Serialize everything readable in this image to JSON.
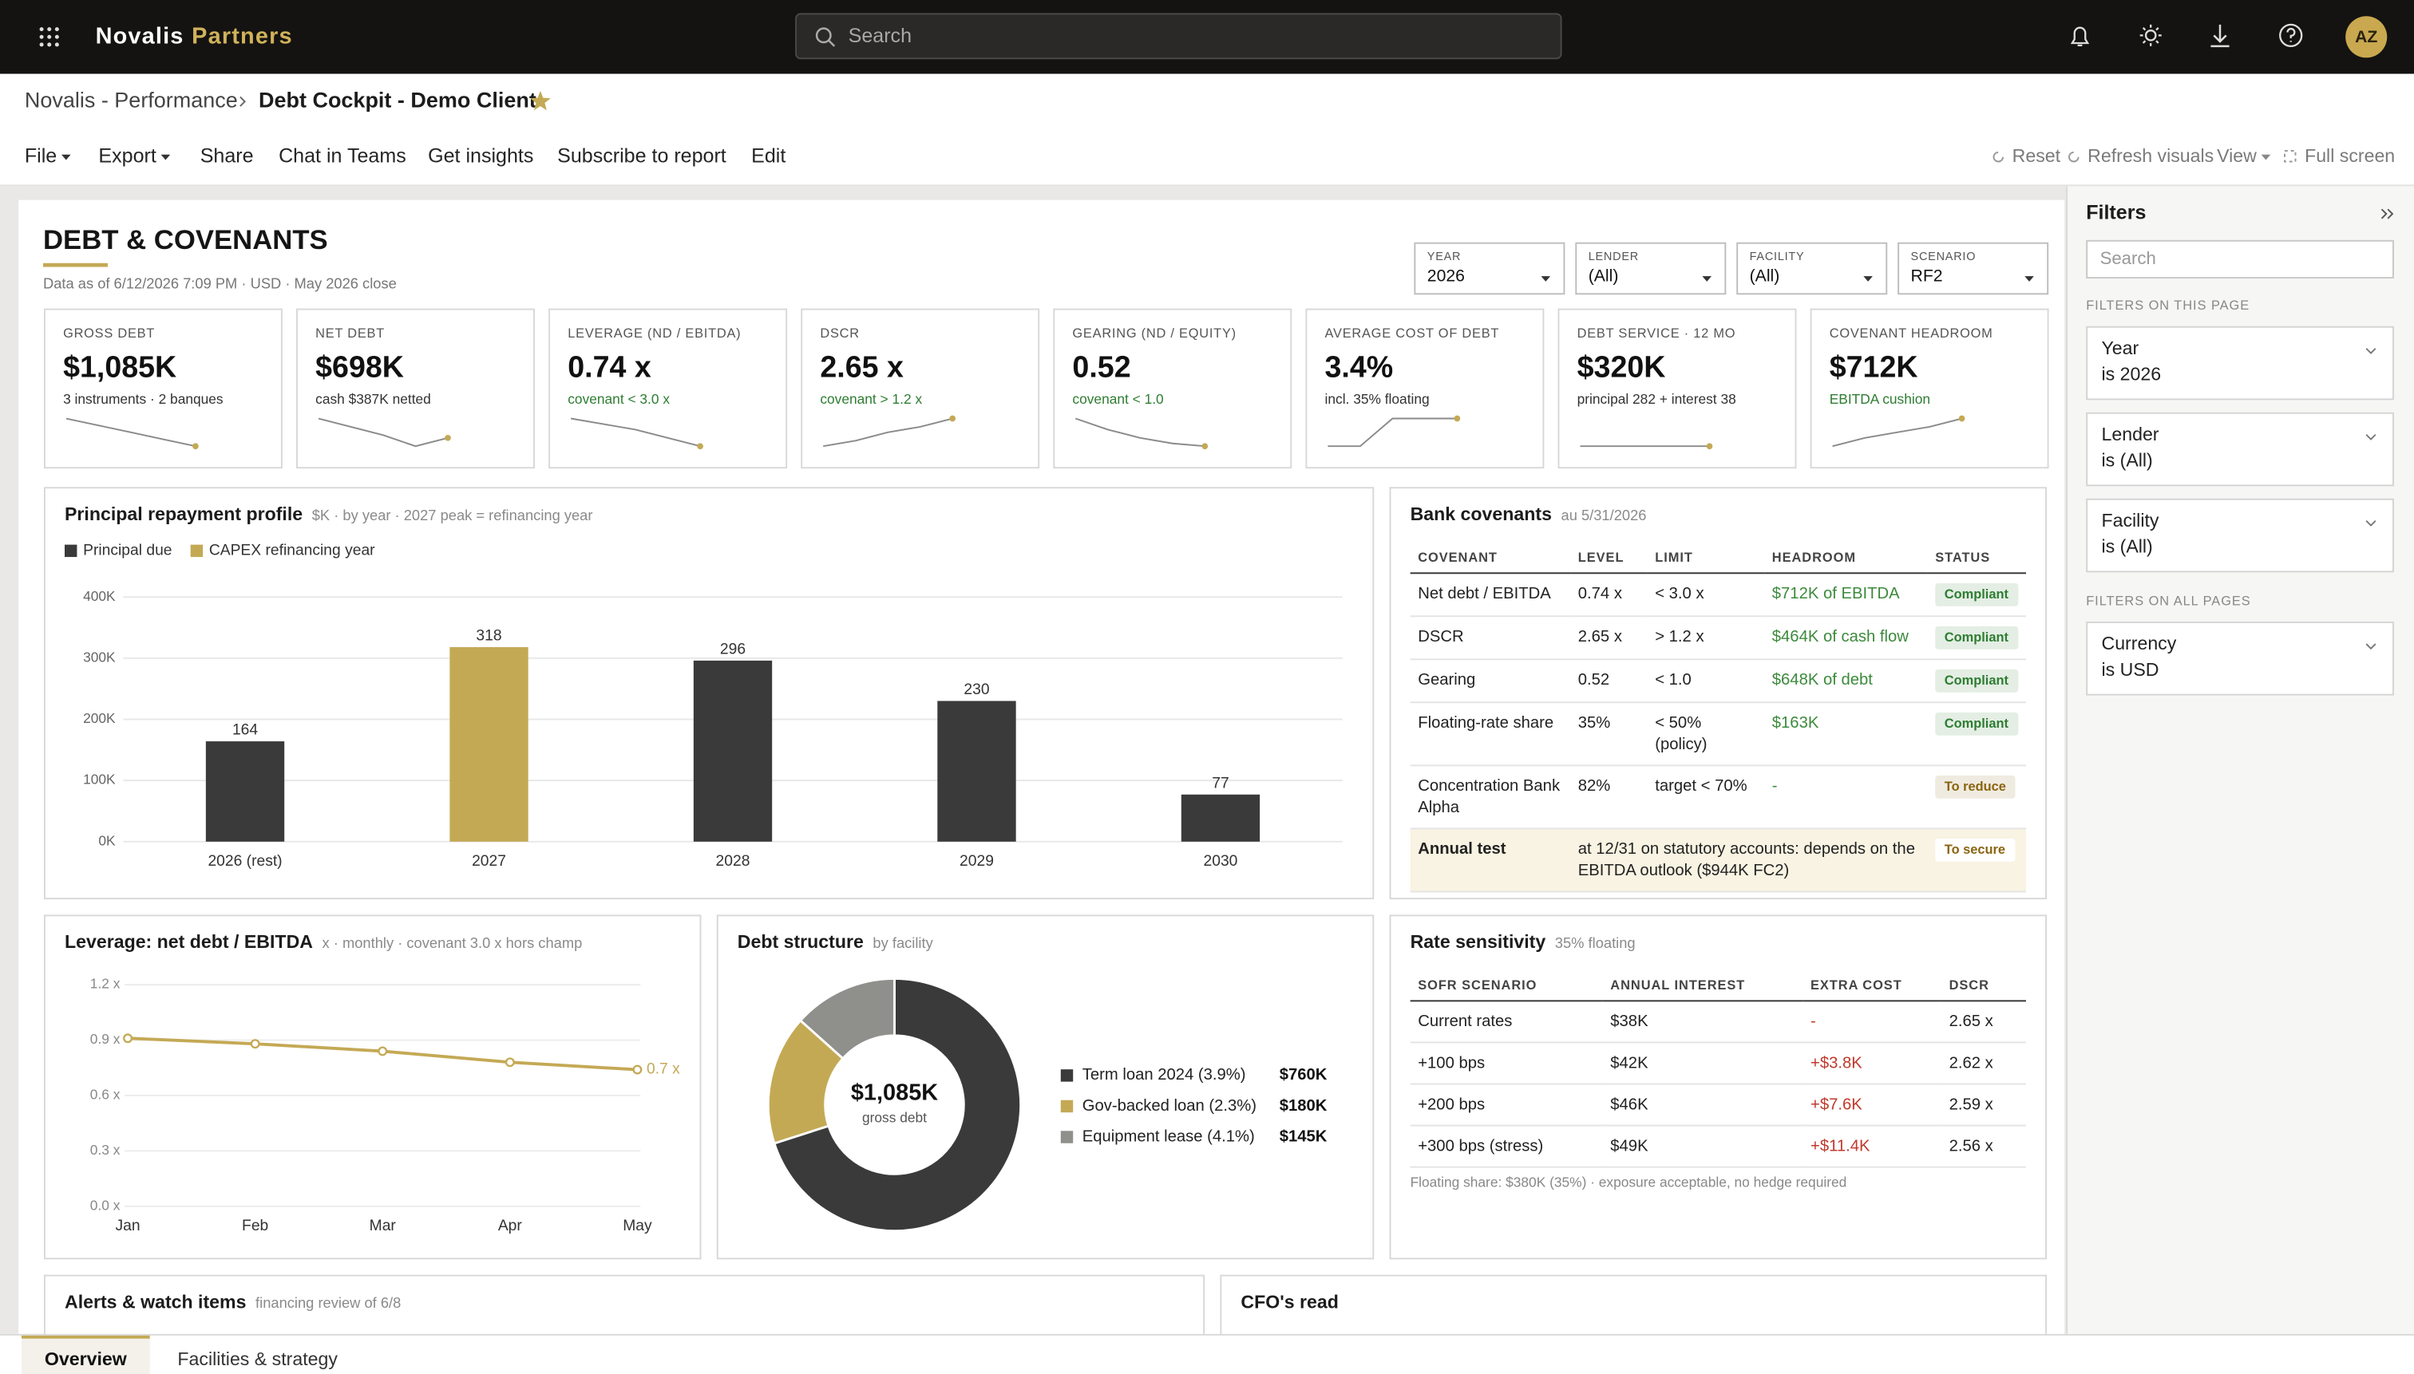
{
  "top_bar": {
    "brand": "Novalis",
    "brand_accent": "Partners",
    "search": "Search",
    "avatar": "AZ"
  },
  "breadcrumb": {
    "parent": "Novalis - Performance",
    "current": "Debt Cockpit - Demo Client"
  },
  "menu": {
    "left": [
      "File",
      "Export",
      "Share",
      "Chat in Teams",
      "Get insights",
      "Subscribe to report",
      "Edit"
    ],
    "right": [
      "Reset",
      "Refresh visuals",
      "View",
      "Full screen"
    ]
  },
  "report": {
    "title": "DEBT & COVENANTS",
    "subtitle": "Data as of 6/12/2026 7:09 PM · USD · May 2026 close",
    "slicers": [
      {
        "label": "YEAR",
        "value": "2026"
      },
      {
        "label": "LENDER",
        "value": "(All)"
      },
      {
        "label": "FACILITY",
        "value": "(All)"
      },
      {
        "label": "SCENARIO",
        "value": "RF2"
      }
    ],
    "kpis": [
      {
        "label": "GROSS DEBT",
        "value": "$1,085K",
        "note": "3 instruments · 2 banques",
        "note_color": "#333333",
        "trend": [
          10,
          7.5,
          5,
          2.5,
          0
        ]
      },
      {
        "label": "NET DEBT",
        "value": "$698K",
        "note": "cash $387K netted",
        "note_color": "#333333",
        "trend": [
          10,
          7,
          4,
          0,
          3
        ]
      },
      {
        "label": "LEVERAGE (ND / EBITDA)",
        "value": "0.74 x",
        "note": "covenant < 3.0 x",
        "note_color": "#2e7d32",
        "trend": [
          10,
          8,
          6,
          3,
          0
        ]
      },
      {
        "label": "DSCR",
        "value": "2.65 x",
        "note": "covenant > 1.2 x",
        "note_color": "#2e7d32",
        "trend": [
          0,
          2,
          5,
          7,
          10
        ]
      },
      {
        "label": "GEARING (ND / EQUITY)",
        "value": "0.52",
        "note": "covenant < 1.0",
        "note_color": "#2e7d32",
        "trend": [
          10,
          6,
          3,
          1,
          0
        ]
      },
      {
        "label": "AVERAGE COST OF DEBT",
        "value": "3.4%",
        "note": "incl. 35% floating",
        "note_color": "#333333",
        "trend": [
          0,
          0,
          10,
          10,
          10
        ]
      },
      {
        "label": "DEBT SERVICE · 12 MO",
        "value": "$320K",
        "note": "principal 282 + interest 38",
        "note_color": "#333333",
        "trend": [
          5,
          5,
          5,
          5,
          5
        ]
      },
      {
        "label": "COVENANT HEADROOM",
        "value": "$712K",
        "note": "EBITDA cushion",
        "note_color": "#2e7d32",
        "trend": [
          0,
          3,
          5,
          7,
          10
        ]
      }
    ],
    "covenants": {
      "title": "Bank covenants",
      "subtitle": "au 5/31/2026",
      "columns": [
        "COVENANT",
        "LEVEL",
        "LIMIT",
        "HEADROOM",
        "STATUS"
      ],
      "headroom_color": "#3c8a3c",
      "rows": [
        {
          "cells": [
            "Net debt / EBITDA",
            "0.74 x",
            "< 3.0 x",
            "$712K of EBITDA",
            "Compliant"
          ],
          "status_color": "#2e7d32"
        },
        {
          "cells": [
            "DSCR",
            "2.65 x",
            "> 1.2 x",
            "$464K of cash flow",
            "Compliant"
          ],
          "status_color": "#2e7d32"
        },
        {
          "cells": [
            "Gearing",
            "0.52",
            "< 1.0",
            "$648K of debt",
            "Compliant"
          ],
          "status_color": "#2e7d32"
        },
        {
          "cells": [
            "Floating-rate share",
            "35%",
            "< 50% (policy)",
            "$163K",
            "Compliant"
          ],
          "status_color": "#2e7d32"
        },
        {
          "cells": [
            "Concentration Bank Alpha",
            "82%",
            "target < 70%",
            "-",
            "To reduce"
          ],
          "status_color": "#8a6410"
        },
        {
          "cells": [
            "Annual test",
            "at 12/31 on statutory accounts: depends on the EBITDA outlook ($944K FC2)",
            "To secure"
          ],
          "status_color": "#8a6410"
        }
      ]
    },
    "sensitivity": {
      "title": "Rate sensitivity",
      "subtitle": "35% floating",
      "columns": [
        "SOFR SCENARIO",
        "ANNUAL INTEREST",
        "EXTRA COST",
        "DSCR"
      ],
      "extra_cost_color": "#c0392b",
      "rows": [
        [
          "Current rates",
          "$38K",
          "-",
          "2.65 x"
        ],
        [
          "+100 bps",
          "$42K",
          "+$3.8K",
          "2.62 x"
        ],
        [
          "+200 bps",
          "$46K",
          "+$7.6K",
          "2.59 x"
        ],
        [
          "+300 bps (stress)",
          "$49K",
          "+$11.4K",
          "2.56 x"
        ]
      ],
      "footnote": "Floating share: $380K (35%) · exposure acceptable, no hedge required"
    },
    "alerts": {
      "title": "Alerts & watch items",
      "subtitle": "financing review of 6/8"
    },
    "cfo": {
      "title": "CFO's read"
    }
  },
  "chart_data": [
    {
      "type": "bar",
      "title": "Principal repayment profile",
      "subtitle": "$K · by year · 2027 peak = refinancing year",
      "categories": [
        "2026 (rest)",
        "2027",
        "2028",
        "2029",
        "2030"
      ],
      "series": [
        {
          "name": "Principal due",
          "color": "#3a3a3a",
          "values": [
            164,
            null,
            296,
            230,
            77
          ]
        },
        {
          "name": "CAPEX refinancing year",
          "color": "#c4a955",
          "values": [
            null,
            318,
            null,
            null,
            null
          ]
        }
      ],
      "ylim": [
        0,
        400
      ],
      "yticks": [
        {
          "value": 0,
          "label": "0K"
        },
        {
          "value": 100,
          "label": "100K"
        },
        {
          "value": 200,
          "label": "200K"
        },
        {
          "value": 300,
          "label": "300K"
        },
        {
          "value": 400,
          "label": "400K"
        }
      ],
      "grid": true
    },
    {
      "type": "line",
      "title": "Leverage: net debt / EBITDA",
      "subtitle": "x · monthly · covenant 3.0 x hors champ",
      "categories": [
        "Jan",
        "Feb",
        "Mar",
        "Apr",
        "May"
      ],
      "values": [
        0.91,
        0.88,
        0.84,
        0.78,
        0.74
      ],
      "value_labels": [
        null,
        null,
        null,
        null,
        "0.7 x"
      ],
      "color": "#c4a955",
      "ylim": [
        0,
        1.2
      ],
      "yticks": [
        {
          "value": 0,
          "label": "0.0 x"
        },
        {
          "value": 0.3,
          "label": "0.3 x"
        },
        {
          "value": 0.6,
          "label": "0.6 x"
        },
        {
          "value": 0.9,
          "label": "0.9 x"
        },
        {
          "value": 1.2,
          "label": "1.2 x"
        }
      ],
      "grid": true
    },
    {
      "type": "donut",
      "title": "Debt structure",
      "subtitle": "by facility",
      "center_value": "$1,085K",
      "center_label": "gross debt",
      "categories": [
        "Term loan 2024 (3.9%)",
        "Gov-backed loan (2.3%)",
        "Equipment lease (4.1%)"
      ],
      "values": [
        760,
        180,
        145
      ],
      "value_labels": [
        "$760K",
        "$180K",
        "$145K"
      ],
      "colors": [
        "#3a3a3a",
        "#c4a955",
        "#8f8f8b"
      ]
    }
  ],
  "tabs": {
    "items": [
      "Overview",
      "Facilities & strategy"
    ],
    "active": 0
  },
  "filters": {
    "title": "Filters",
    "search": "Search",
    "page_heading": "FILTERS ON THIS PAGE",
    "page": [
      {
        "name": "Year",
        "state": "is 2026"
      },
      {
        "name": "Lender",
        "state": "is (All)"
      },
      {
        "name": "Facility",
        "state": "is (All)"
      }
    ],
    "all_heading": "FILTERS ON ALL PAGES",
    "all": [
      {
        "name": "Currency",
        "state": "is USD"
      }
    ]
  }
}
